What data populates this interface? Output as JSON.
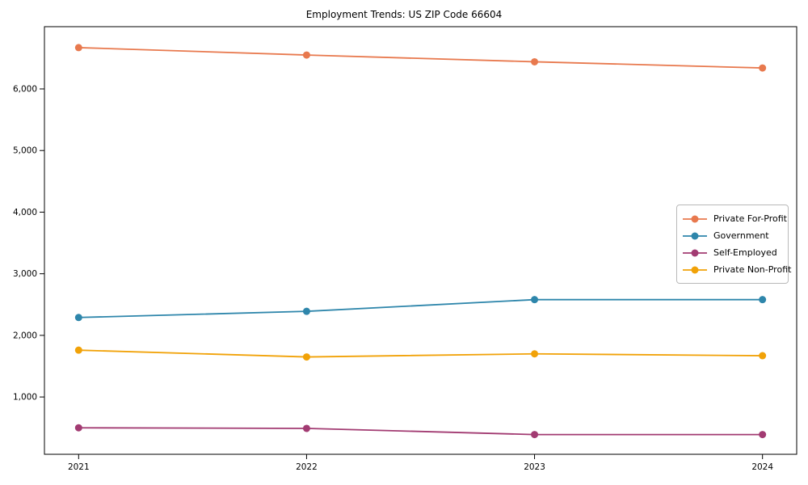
{
  "figure": {
    "title": "Employment Trends: US ZIP Code 66604"
  },
  "chart_data": {
    "type": "line",
    "title": "Employment Trends: US ZIP Code 66604",
    "xlabel": "",
    "ylabel": "",
    "grid": false,
    "legend_position": "center right",
    "marker": "circle",
    "categories": [
      2021,
      2022,
      2023,
      2024
    ],
    "x_tick_labels": [
      "2021",
      "2022",
      "2023",
      "2024"
    ],
    "y_tick_values": [
      1000,
      2000,
      3000,
      4000,
      5000,
      6000
    ],
    "y_tick_labels": [
      "1,000",
      "2,000",
      "3,000",
      "4,000",
      "5,000",
      "6,000"
    ],
    "xlim": [
      2020.85,
      2024.15
    ],
    "ylim": [
      70,
      7010
    ],
    "series": [
      {
        "name": "Private For-Profit",
        "color": "#E8794E",
        "values": [
          6670,
          6550,
          6440,
          6340
        ]
      },
      {
        "name": "Government",
        "color": "#2E86AB",
        "values": [
          2290,
          2390,
          2580,
          2580
        ]
      },
      {
        "name": "Self-Employed",
        "color": "#A23B72",
        "values": [
          500,
          490,
          390,
          390
        ]
      },
      {
        "name": "Private Non-Profit",
        "color": "#F1A208",
        "values": [
          1760,
          1650,
          1700,
          1670
        ]
      }
    ]
  },
  "colors": {
    "axis": "#000000",
    "tick_text": "#000000",
    "background": "#ffffff",
    "legend_border": "#b9b9b9"
  }
}
